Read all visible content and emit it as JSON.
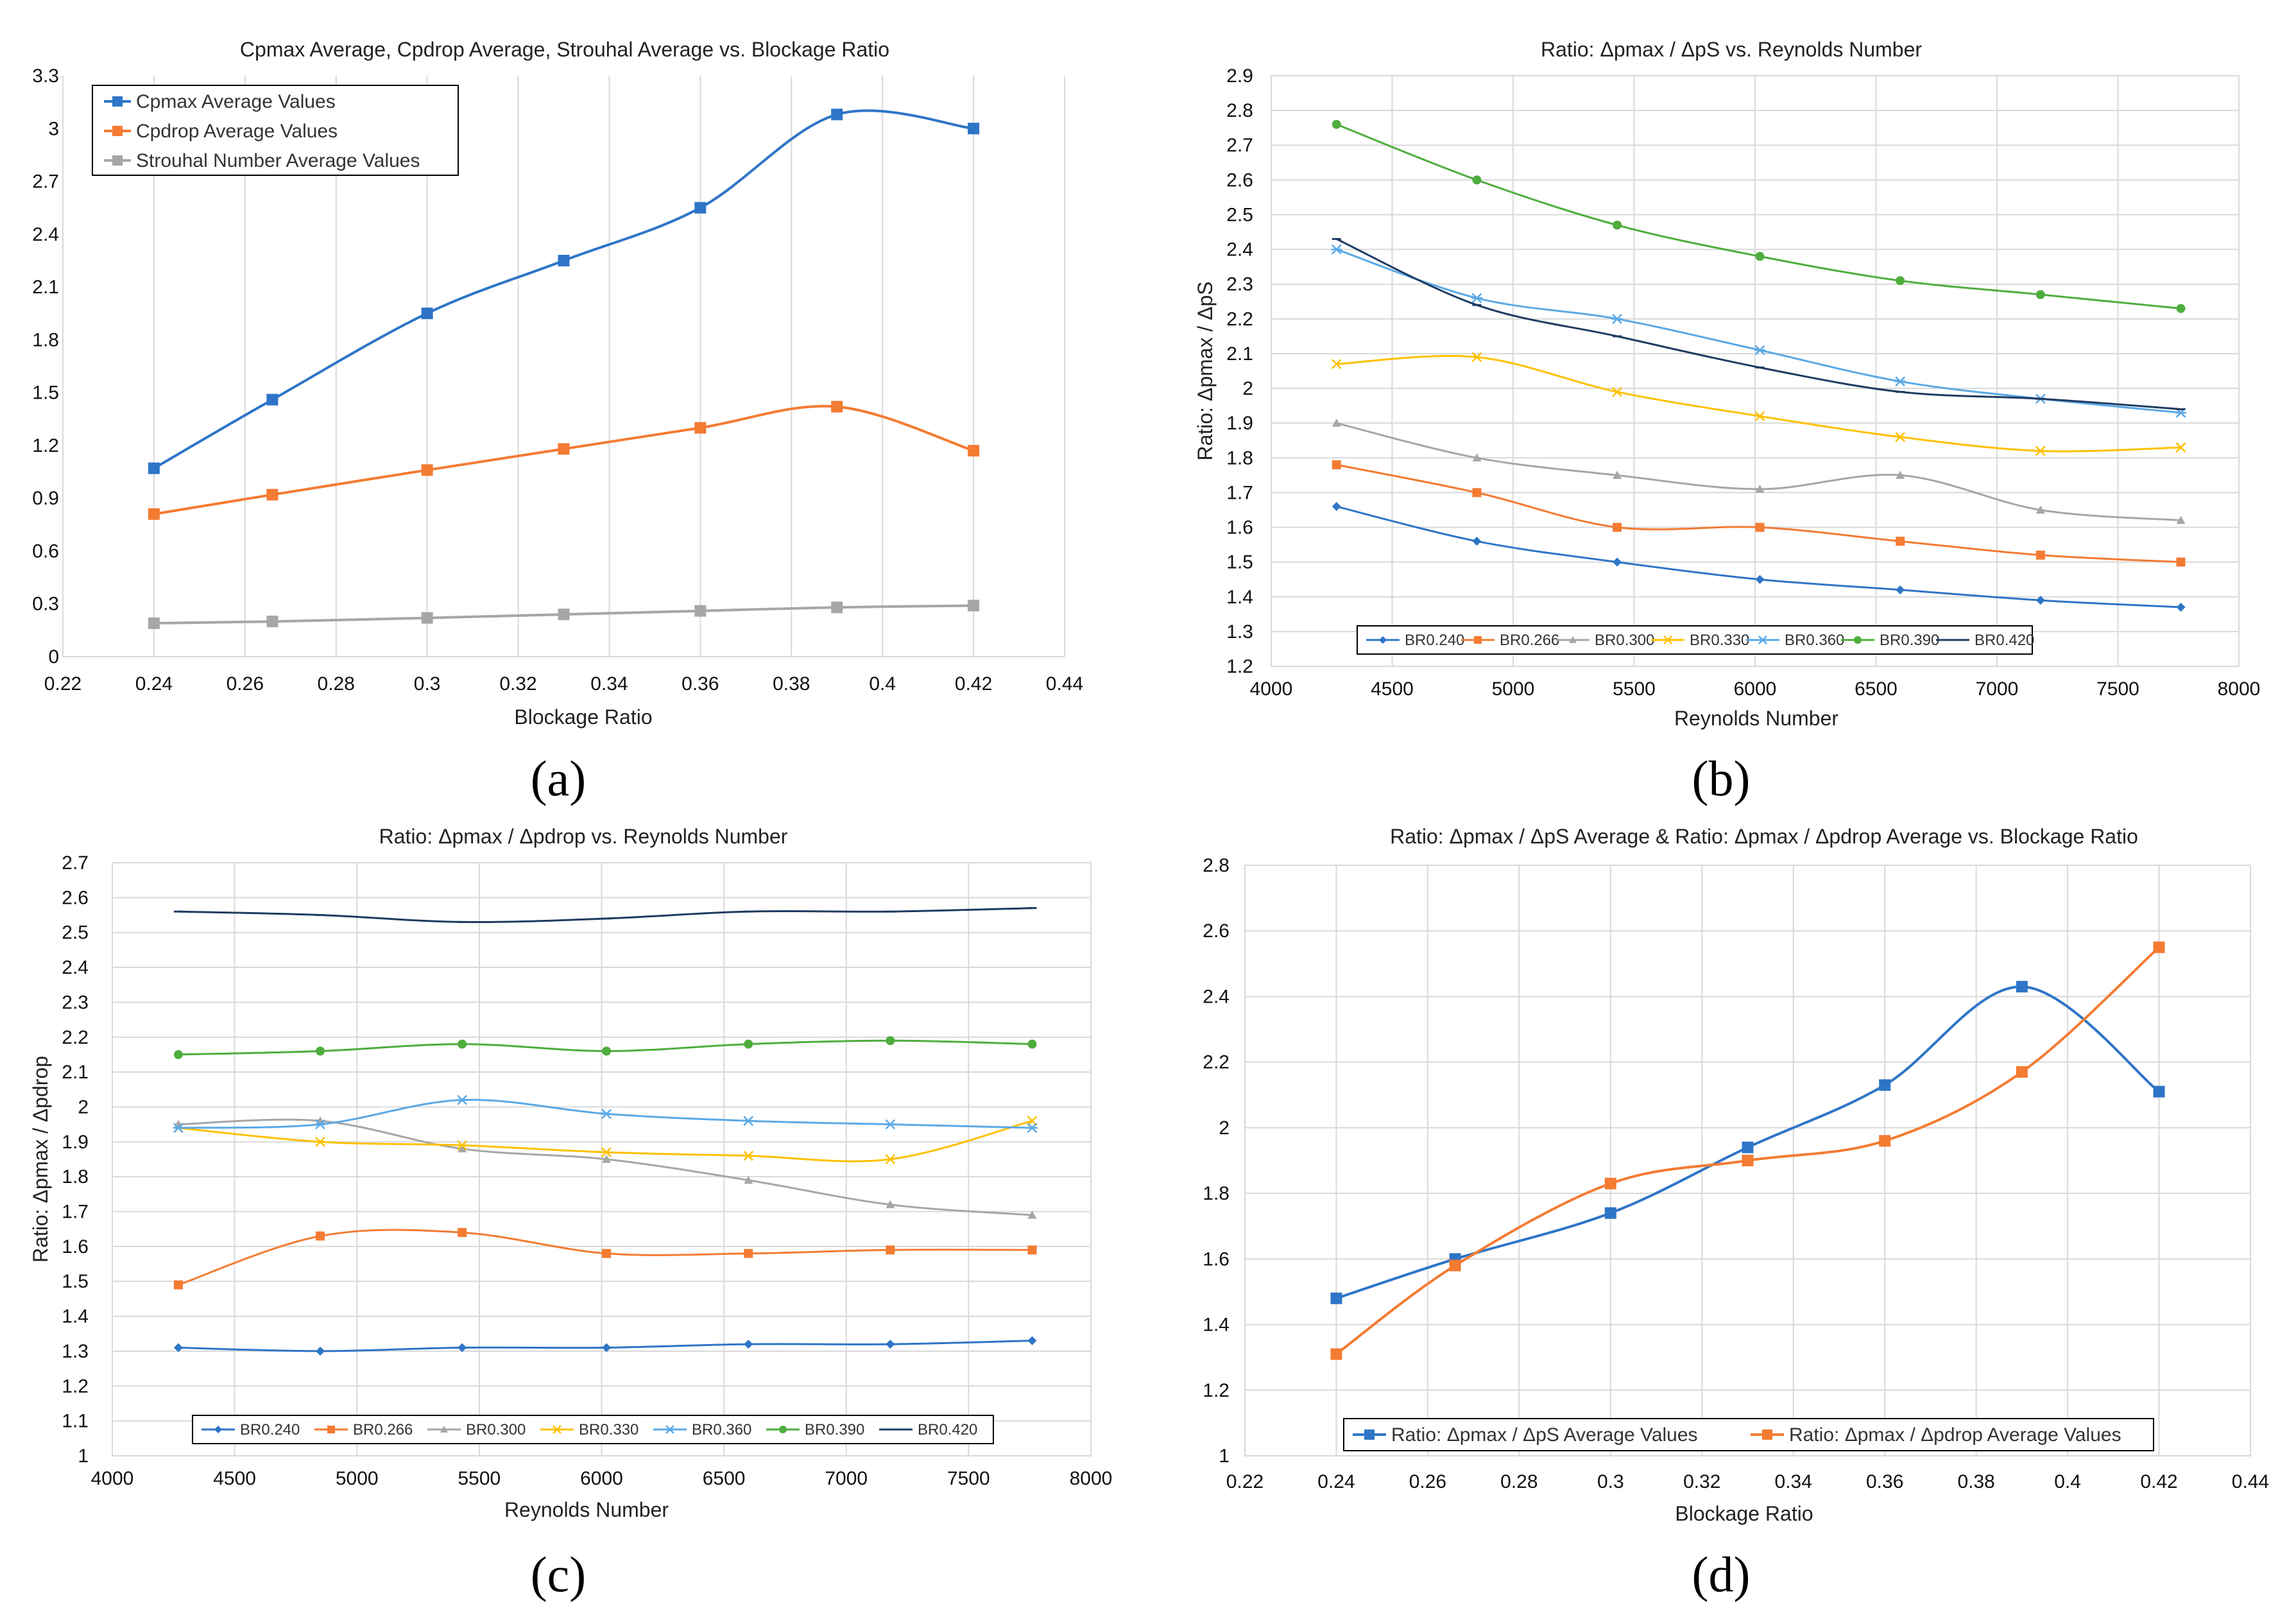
{
  "chart_data": [
    {
      "id": "a",
      "panel_label": "(a)",
      "type": "line",
      "title": "Cpmax Average, Cpdrop Average, Strouhal Average vs. Blockage Ratio",
      "xlabel": "Blockage Ratio",
      "ylabel": "",
      "xlim": [
        0.22,
        0.44
      ],
      "ylim": [
        0,
        3.3
      ],
      "xticks": [
        "0.22",
        "0.24",
        "0.26",
        "0.28",
        "0.3",
        "0.32",
        "0.34",
        "0.36",
        "0.38",
        "0.4",
        "0.42",
        "0.44"
      ],
      "yticks": [
        "0",
        "0.3",
        "0.6",
        "0.9",
        "1.2",
        "1.5",
        "1.8",
        "2.1",
        "2.4",
        "2.7",
        "3",
        "3.3"
      ],
      "grid": "vertical",
      "legend_position": "top-left",
      "x": [
        0.24,
        0.266,
        0.3,
        0.33,
        0.36,
        0.39,
        0.42
      ],
      "series": [
        {
          "name": "Cpmax Average Values",
          "color": "#2e75c7",
          "marker": "square",
          "values": [
            1.07,
            1.46,
            1.95,
            2.25,
            2.55,
            3.08,
            3.0
          ]
        },
        {
          "name": "Cpdrop Average Values",
          "color": "#f47b32",
          "marker": "square",
          "values": [
            0.81,
            0.92,
            1.06,
            1.18,
            1.3,
            1.42,
            1.17
          ]
        },
        {
          "name": "Strouhal Number Average Values",
          "color": "#a6a6a6",
          "marker": "square",
          "values": [
            0.19,
            0.2,
            0.22,
            0.24,
            0.26,
            0.28,
            0.29
          ]
        }
      ]
    },
    {
      "id": "b",
      "panel_label": "(b)",
      "type": "line",
      "title": "Ratio: Δpmax / ΔpS vs. Reynolds Number",
      "xlabel": "Reynolds Number",
      "ylabel": "Ratio: Δpmax / ΔpS",
      "xlim": [
        4000,
        8000
      ],
      "ylim": [
        1.2,
        2.9
      ],
      "xticks": [
        "4000",
        "4500",
        "5000",
        "5500",
        "6000",
        "6500",
        "7000",
        "7500",
        "8000"
      ],
      "yticks": [
        "1.2",
        "1.3",
        "1.4",
        "1.5",
        "1.6",
        "1.7",
        "1.8",
        "1.9",
        "2",
        "2.1",
        "2.2",
        "2.3",
        "2.4",
        "2.5",
        "2.6",
        "2.7",
        "2.8",
        "2.9"
      ],
      "grid": "both",
      "legend_position": "bottom",
      "x": [
        4270,
        4850,
        5430,
        6020,
        6600,
        7180,
        7760
      ],
      "series": [
        {
          "name": "BR0.240",
          "color": "#2e75c7",
          "marker": "diamond",
          "values": [
            1.66,
            1.56,
            1.5,
            1.45,
            1.42,
            1.39,
            1.37
          ]
        },
        {
          "name": "BR0.266",
          "color": "#f47b32",
          "marker": "square",
          "values": [
            1.78,
            1.7,
            1.6,
            1.6,
            1.56,
            1.52,
            1.5
          ]
        },
        {
          "name": "BR0.300",
          "color": "#a6a6a6",
          "marker": "triangle",
          "values": [
            1.9,
            1.8,
            1.75,
            1.71,
            1.75,
            1.65,
            1.62
          ]
        },
        {
          "name": "BR0.330",
          "color": "#ffc000",
          "marker": "x",
          "values": [
            2.07,
            2.09,
            1.99,
            1.92,
            1.86,
            1.82,
            1.83
          ]
        },
        {
          "name": "BR0.360",
          "color": "#5aa9e6",
          "marker": "star",
          "values": [
            2.4,
            2.26,
            2.2,
            2.11,
            2.02,
            1.97,
            1.93
          ]
        },
        {
          "name": "BR0.390",
          "color": "#4ead3d",
          "marker": "circle",
          "values": [
            2.76,
            2.6,
            2.47,
            2.38,
            2.31,
            2.27,
            2.23
          ]
        },
        {
          "name": "BR0.420",
          "color": "#1f3b63",
          "marker": "dash",
          "values": [
            2.43,
            2.24,
            2.15,
            2.06,
            1.99,
            1.97,
            1.94
          ]
        }
      ]
    },
    {
      "id": "c",
      "panel_label": "(c)",
      "type": "line",
      "title": "Ratio: Δpmax / Δpdrop vs. Reynolds Number",
      "xlabel": "Reynolds Number",
      "ylabel": "Ratio: Δpmax / Δpdrop",
      "xlim": [
        4000,
        8000
      ],
      "ylim": [
        1,
        2.7
      ],
      "xticks": [
        "4000",
        "4500",
        "5000",
        "5500",
        "6000",
        "6500",
        "7000",
        "7500",
        "8000"
      ],
      "yticks": [
        "1",
        "1.1",
        "1.2",
        "1.3",
        "1.4",
        "1.5",
        "1.6",
        "1.7",
        "1.8",
        "1.9",
        "2",
        "2.1",
        "2.2",
        "2.3",
        "2.4",
        "2.5",
        "2.6",
        "2.7"
      ],
      "grid": "both",
      "legend_position": "bottom",
      "x": [
        4270,
        4850,
        5430,
        6020,
        6600,
        7180,
        7760
      ],
      "series": [
        {
          "name": "BR0.240",
          "color": "#2e75c7",
          "marker": "diamond",
          "values": [
            1.31,
            1.3,
            1.31,
            1.31,
            1.32,
            1.32,
            1.33
          ]
        },
        {
          "name": "BR0.266",
          "color": "#f47b32",
          "marker": "square",
          "values": [
            1.49,
            1.63,
            1.64,
            1.58,
            1.58,
            1.59,
            1.59
          ]
        },
        {
          "name": "BR0.300",
          "color": "#a6a6a6",
          "marker": "triangle",
          "values": [
            1.95,
            1.96,
            1.88,
            1.85,
            1.79,
            1.72,
            1.69
          ]
        },
        {
          "name": "BR0.330",
          "color": "#ffc000",
          "marker": "x",
          "values": [
            1.94,
            1.9,
            1.89,
            1.87,
            1.86,
            1.85,
            1.96
          ]
        },
        {
          "name": "BR0.360",
          "color": "#5aa9e6",
          "marker": "star",
          "values": [
            1.94,
            1.95,
            2.02,
            1.98,
            1.96,
            1.95,
            1.94
          ]
        },
        {
          "name": "BR0.390",
          "color": "#4ead3d",
          "marker": "circle",
          "values": [
            2.15,
            2.16,
            2.18,
            2.16,
            2.18,
            2.19,
            2.18
          ]
        },
        {
          "name": "BR0.420",
          "color": "#1f3b63",
          "marker": "dash",
          "values": [
            2.56,
            2.55,
            2.53,
            2.54,
            2.56,
            2.56,
            2.57
          ]
        }
      ]
    },
    {
      "id": "d",
      "panel_label": "(d)",
      "type": "line",
      "title": "Ratio: Δpmax / ΔpS Average & Ratio: Δpmax / Δpdrop Average vs. Blockage Ratio",
      "xlabel": "Blockage Ratio",
      "ylabel": "",
      "xlim": [
        0.22,
        0.44
      ],
      "ylim": [
        1,
        2.8
      ],
      "xticks": [
        "0.22",
        "0.24",
        "0.26",
        "0.28",
        "0.3",
        "0.32",
        "0.34",
        "0.36",
        "0.38",
        "0.4",
        "0.42",
        "0.44"
      ],
      "yticks": [
        "1",
        "1.2",
        "1.4",
        "1.6",
        "1.8",
        "2",
        "2.2",
        "2.4",
        "2.6",
        "2.8"
      ],
      "grid": "both",
      "legend_position": "bottom",
      "x": [
        0.24,
        0.266,
        0.3,
        0.33,
        0.36,
        0.39,
        0.42
      ],
      "series": [
        {
          "name": "Ratio: Δpmax / ΔpS Average Values",
          "color": "#2e75c7",
          "marker": "square",
          "values": [
            1.48,
            1.6,
            1.74,
            1.94,
            2.13,
            2.43,
            2.11
          ]
        },
        {
          "name": "Ratio: Δpmax / Δpdrop Average Values",
          "color": "#f47b32",
          "marker": "square",
          "values": [
            1.31,
            1.58,
            1.83,
            1.9,
            1.96,
            2.17,
            2.55
          ]
        }
      ]
    }
  ]
}
